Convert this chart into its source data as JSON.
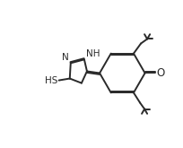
{
  "background_color": "#ffffff",
  "line_color": "#2a2a2a",
  "line_width": 1.4,
  "font_size": 7.5,
  "figsize": [
    2.04,
    1.65
  ],
  "dpi": 100,
  "xlim": [
    0,
    10
  ],
  "ylim": [
    0,
    8.1
  ]
}
